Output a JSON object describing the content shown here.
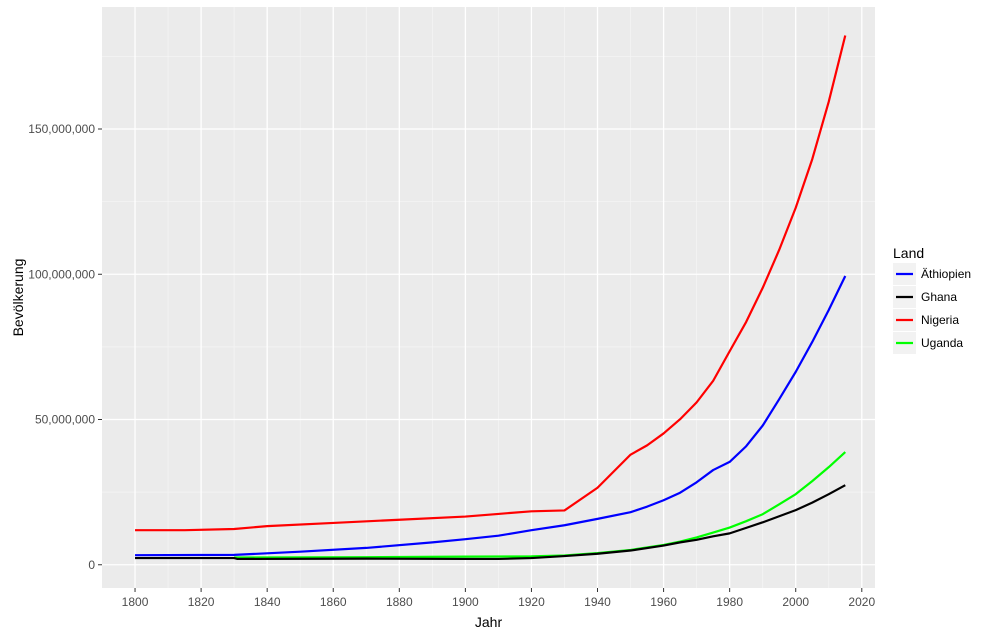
{
  "chart_data": {
    "type": "line",
    "xlabel": "Jahr",
    "ylabel": "Bevölkerung",
    "xlim": [
      1790,
      2024
    ],
    "ylim": [
      -8000000,
      192000000
    ],
    "x_ticks": [
      1800,
      1820,
      1840,
      1860,
      1880,
      1900,
      1920,
      1940,
      1960,
      1980,
      2000,
      2020
    ],
    "x_tick_labels": [
      "1800",
      "1820",
      "1840",
      "1860",
      "1880",
      "1900",
      "1920",
      "1940",
      "1960",
      "1980",
      "2000",
      "2020"
    ],
    "y_ticks": [
      0,
      50000000,
      100000000,
      150000000
    ],
    "y_tick_labels": [
      "0",
      "50,000,000",
      "100,000,000",
      "150,000,000"
    ],
    "grid": true,
    "legend": {
      "title": "Land",
      "placement": "right",
      "entries": [
        "Äthiopien",
        "Ghana",
        "Nigeria",
        "Uganda"
      ]
    },
    "series": [
      {
        "name": "Äthiopien",
        "color": "#0000ff",
        "points": [
          [
            1800,
            3300000
          ],
          [
            1830,
            3400000
          ],
          [
            1850,
            4500000
          ],
          [
            1870,
            5800000
          ],
          [
            1890,
            7700000
          ],
          [
            1900,
            8800000
          ],
          [
            1910,
            10000000
          ],
          [
            1920,
            11900000
          ],
          [
            1930,
            13600000
          ],
          [
            1940,
            15800000
          ],
          [
            1950,
            18100000
          ],
          [
            1955,
            20000000
          ],
          [
            1960,
            22200000
          ],
          [
            1965,
            24800000
          ],
          [
            1970,
            28400000
          ],
          [
            1975,
            32600000
          ],
          [
            1980,
            35400000
          ],
          [
            1985,
            40800000
          ],
          [
            1990,
            47900000
          ],
          [
            1995,
            57000000
          ],
          [
            2000,
            66400000
          ],
          [
            2005,
            76700000
          ],
          [
            2010,
            87700000
          ],
          [
            2015,
            99400000
          ]
        ]
      },
      {
        "name": "Ghana",
        "color": "#000000",
        "points": [
          [
            1800,
            2300000
          ],
          [
            1830,
            2300000
          ],
          [
            1831,
            2000000
          ],
          [
            1870,
            2100000
          ],
          [
            1900,
            2000000
          ],
          [
            1910,
            2000000
          ],
          [
            1920,
            2300000
          ],
          [
            1930,
            3000000
          ],
          [
            1940,
            3800000
          ],
          [
            1950,
            4900000
          ],
          [
            1960,
            6600000
          ],
          [
            1965,
            7700000
          ],
          [
            1970,
            8600000
          ],
          [
            1975,
            9800000
          ],
          [
            1980,
            10800000
          ],
          [
            1985,
            12700000
          ],
          [
            1990,
            14600000
          ],
          [
            1995,
            16700000
          ],
          [
            2000,
            18800000
          ],
          [
            2005,
            21400000
          ],
          [
            2010,
            24300000
          ],
          [
            2015,
            27400000
          ]
        ]
      },
      {
        "name": "Nigeria",
        "color": "#ff0000",
        "points": [
          [
            1800,
            11900000
          ],
          [
            1815,
            11900000
          ],
          [
            1830,
            12300000
          ],
          [
            1840,
            13300000
          ],
          [
            1860,
            14400000
          ],
          [
            1880,
            15500000
          ],
          [
            1900,
            16600000
          ],
          [
            1910,
            17500000
          ],
          [
            1920,
            18400000
          ],
          [
            1930,
            18700000
          ],
          [
            1940,
            26500000
          ],
          [
            1950,
            37900000
          ],
          [
            1955,
            41100000
          ],
          [
            1960,
            45200000
          ],
          [
            1965,
            50100000
          ],
          [
            1970,
            55900000
          ],
          [
            1975,
            63300000
          ],
          [
            1980,
            73500000
          ],
          [
            1985,
            83600000
          ],
          [
            1990,
            95300000
          ],
          [
            1995,
            108400000
          ],
          [
            2000,
            122900000
          ],
          [
            2005,
            139600000
          ],
          [
            2010,
            159400000
          ],
          [
            2015,
            182200000
          ]
        ]
      },
      {
        "name": "Uganda",
        "color": "#00ff00",
        "points": [
          [
            1830,
            2500000
          ],
          [
            1870,
            2600000
          ],
          [
            1900,
            2800000
          ],
          [
            1920,
            2900000
          ],
          [
            1930,
            3200000
          ],
          [
            1940,
            4000000
          ],
          [
            1950,
            5100000
          ],
          [
            1960,
            6800000
          ],
          [
            1965,
            8000000
          ],
          [
            1970,
            9400000
          ],
          [
            1975,
            11100000
          ],
          [
            1980,
            12800000
          ],
          [
            1985,
            15000000
          ],
          [
            1990,
            17400000
          ],
          [
            1995,
            20800000
          ],
          [
            2000,
            24300000
          ],
          [
            2005,
            28800000
          ],
          [
            2010,
            33600000
          ],
          [
            2015,
            38800000
          ]
        ]
      }
    ]
  },
  "style": {
    "panel_background": "#ebebeb",
    "grid_major": "#ffffff",
    "grid_minor": "#f5f5f5",
    "tick_color": "#333333"
  }
}
